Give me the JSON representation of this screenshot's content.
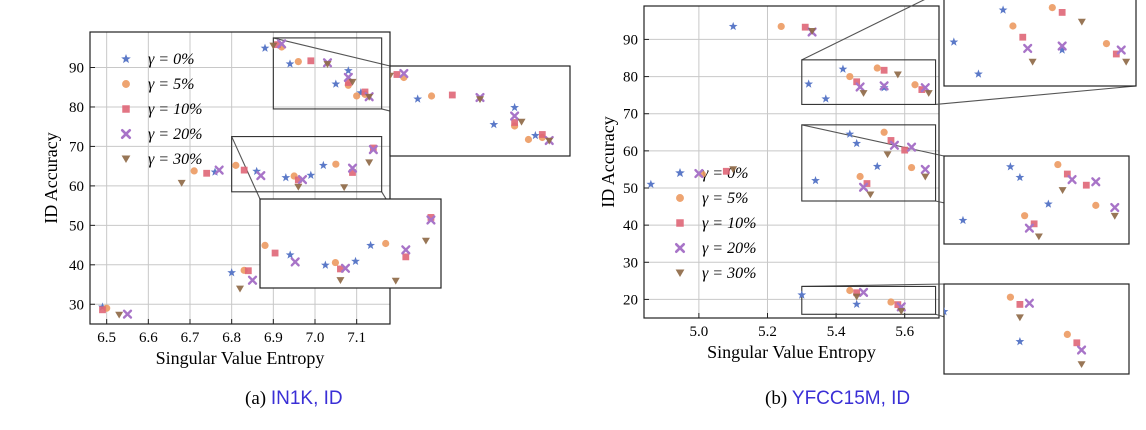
{
  "colors": {
    "g0": "#5b79c8",
    "g5": "#ec9a62",
    "g10": "#df6677",
    "g20": "#a874c8",
    "g30": "#8f6a48",
    "grid": "#c8c8c8",
    "frame": "#444444"
  },
  "captions": [
    {
      "prefix": "(a) ",
      "label": "IN1K, ID"
    },
    {
      "prefix": "(b) ",
      "label": "YFCC15M, ID"
    }
  ],
  "chart_data": [
    {
      "type": "scatter",
      "title": "",
      "xlabel": "Singular Value Entropy",
      "ylabel": "ID Accuracy",
      "xlim": [
        6.46,
        7.18
      ],
      "ylim": [
        25,
        99
      ],
      "xticks": [
        "6.5",
        "6.6",
        "6.7",
        "6.8",
        "6.9",
        "7.0",
        "7.1"
      ],
      "xtick_values": [
        6.5,
        6.6,
        6.7,
        6.8,
        6.9,
        7.0,
        7.1
      ],
      "yticks": [
        "30",
        "40",
        "50",
        "60",
        "70",
        "80",
        "90"
      ],
      "ytick_values": [
        30,
        40,
        50,
        60,
        70,
        80,
        90
      ],
      "grid": true,
      "legend_position": "left",
      "series": [
        {
          "name": "γ = 0%",
          "marker": "star",
          "color_key": "g0",
          "points": [
            [
              6.49,
              29.3
            ],
            [
              6.8,
              38.0
            ],
            [
              6.86,
              63.7
            ],
            [
              6.93,
              62.1
            ],
            [
              6.99,
              62.7
            ],
            [
              7.02,
              65.2
            ],
            [
              7.05,
              85.8
            ],
            [
              7.08,
              89.2
            ],
            [
              7.11,
              83.6
            ],
            [
              6.94,
              90.9
            ],
            [
              6.88,
              94.9
            ],
            [
              6.76,
              63.5
            ]
          ]
        },
        {
          "name": "γ = 5%",
          "marker": "circle",
          "color_key": "g5",
          "points": [
            [
              6.5,
              29.0
            ],
            [
              6.71,
              63.8
            ],
            [
              6.81,
              65.2
            ],
            [
              6.83,
              38.6
            ],
            [
              6.95,
              62.5
            ],
            [
              7.05,
              65.5
            ],
            [
              7.08,
              85.5
            ],
            [
              7.1,
              82.8
            ],
            [
              7.12,
              83.2
            ],
            [
              6.96,
              91.5
            ],
            [
              6.92,
              95.2
            ]
          ]
        },
        {
          "name": "γ = 10%",
          "marker": "square",
          "color_key": "g10",
          "points": [
            [
              6.49,
              28.6
            ],
            [
              6.74,
              63.2
            ],
            [
              6.83,
              64.0
            ],
            [
              6.84,
              38.5
            ],
            [
              6.96,
              61.5
            ],
            [
              7.09,
              63.4
            ],
            [
              7.14,
              69.6
            ],
            [
              7.08,
              86.2
            ],
            [
              7.12,
              83.8
            ],
            [
              6.99,
              91.7
            ],
            [
              6.91,
              95.8
            ]
          ]
        },
        {
          "name": "γ = 20%",
          "marker": "cross",
          "color_key": "g20",
          "points": [
            [
              6.55,
              27.5
            ],
            [
              6.77,
              64.0
            ],
            [
              6.85,
              36.1
            ],
            [
              6.87,
              62.6
            ],
            [
              6.97,
              61.6
            ],
            [
              7.09,
              64.5
            ],
            [
              7.14,
              69.2
            ],
            [
              7.08,
              87.5
            ],
            [
              7.13,
              82.6
            ],
            [
              7.03,
              91.2
            ],
            [
              6.92,
              96.0
            ]
          ]
        },
        {
          "name": "γ = 30%",
          "marker": "triangle",
          "color_key": "g30",
          "points": [
            [
              6.53,
              27.3
            ],
            [
              6.68,
              60.7
            ],
            [
              6.82,
              33.9
            ],
            [
              6.96,
              59.7
            ],
            [
              7.07,
              59.6
            ],
            [
              7.13,
              65.9
            ],
            [
              7.09,
              86.3
            ],
            [
              7.13,
              82.5
            ],
            [
              7.03,
              90.8
            ],
            [
              6.9,
              95.5
            ]
          ]
        }
      ],
      "insets": [
        {
          "xrange": [
            6.9,
            7.16
          ],
          "yrange": [
            79.5,
            97.5
          ]
        },
        {
          "xrange": [
            6.8,
            7.16
          ],
          "yrange": [
            58.5,
            72.5
          ]
        }
      ]
    },
    {
      "type": "scatter",
      "title": "",
      "xlabel": "Singular Value Entropy",
      "ylabel": "ID Accuracy",
      "xlim": [
        4.84,
        5.7
      ],
      "ylim": [
        15,
        99
      ],
      "xticks": [
        "5.0",
        "5.2",
        "5.4",
        "5.6"
      ],
      "xtick_values": [
        5.0,
        5.2,
        5.4,
        5.6
      ],
      "yticks": [
        "20",
        "30",
        "40",
        "50",
        "60",
        "70",
        "80",
        "90"
      ],
      "ytick_values": [
        20,
        30,
        40,
        50,
        60,
        70,
        80,
        90
      ],
      "grid": true,
      "legend_position": "center-left",
      "series": [
        {
          "name": "γ = 0%",
          "marker": "star",
          "color_key": "g0",
          "points": [
            [
              4.86,
              51.0
            ],
            [
              5.1,
              93.5
            ],
            [
              5.32,
              78.0
            ],
            [
              5.34,
              52.0
            ],
            [
              5.44,
              64.5
            ],
            [
              5.46,
              62.0
            ],
            [
              5.52,
              55.8
            ],
            [
              5.3,
              21.2
            ],
            [
              5.46,
              18.7
            ],
            [
              5.37,
              74.0
            ],
            [
              5.42,
              82.0
            ],
            [
              5.54,
              77.0
            ]
          ]
        },
        {
          "name": "γ = 5%",
          "marker": "circle",
          "color_key": "g5",
          "points": [
            [
              5.01,
              53.7
            ],
            [
              5.24,
              93.5
            ],
            [
              5.47,
              53.1
            ],
            [
              5.54,
              65.0
            ],
            [
              5.62,
              55.5
            ],
            [
              5.44,
              22.4
            ],
            [
              5.56,
              19.3
            ],
            [
              5.44,
              80.0
            ],
            [
              5.52,
              82.3
            ],
            [
              5.63,
              77.8
            ]
          ]
        },
        {
          "name": "γ = 10%",
          "marker": "square",
          "color_key": "g10",
          "points": [
            [
              5.08,
              54.5
            ],
            [
              5.31,
              93.3
            ],
            [
              5.49,
              51.2
            ],
            [
              5.56,
              62.8
            ],
            [
              5.6,
              60.2
            ],
            [
              5.46,
              21.8
            ],
            [
              5.58,
              18.6
            ],
            [
              5.46,
              78.6
            ],
            [
              5.54,
              81.7
            ],
            [
              5.65,
              76.5
            ]
          ]
        },
        {
          "name": "γ = 20%",
          "marker": "cross",
          "color_key": "g20",
          "points": [
            [
              5.0,
              53.9
            ],
            [
              5.33,
              92.0
            ],
            [
              5.48,
              50.2
            ],
            [
              5.57,
              61.5
            ],
            [
              5.62,
              61.0
            ],
            [
              5.66,
              55.0
            ],
            [
              5.48,
              21.9
            ],
            [
              5.59,
              18.0
            ],
            [
              5.47,
              77.2
            ],
            [
              5.54,
              77.5
            ],
            [
              5.66,
              77.0
            ]
          ]
        },
        {
          "name": "γ = 30%",
          "marker": "triangle",
          "color_key": "g30",
          "points": [
            [
              5.1,
              55.0
            ],
            [
              5.33,
              92.2
            ],
            [
              5.5,
              48.2
            ],
            [
              5.55,
              59.0
            ],
            [
              5.66,
              53.0
            ],
            [
              5.46,
              20.7
            ],
            [
              5.59,
              16.8
            ],
            [
              5.48,
              75.5
            ],
            [
              5.58,
              80.5
            ],
            [
              5.67,
              75.5
            ]
          ]
        }
      ],
      "insets": [
        {
          "xrange": [
            5.3,
            5.69
          ],
          "yrange": [
            72.5,
            84.5
          ]
        },
        {
          "xrange": [
            5.3,
            5.69
          ],
          "yrange": [
            46.5,
            67.0
          ]
        },
        {
          "xrange": [
            5.3,
            5.69
          ],
          "yrange": [
            16.0,
            23.5
          ]
        }
      ]
    }
  ]
}
